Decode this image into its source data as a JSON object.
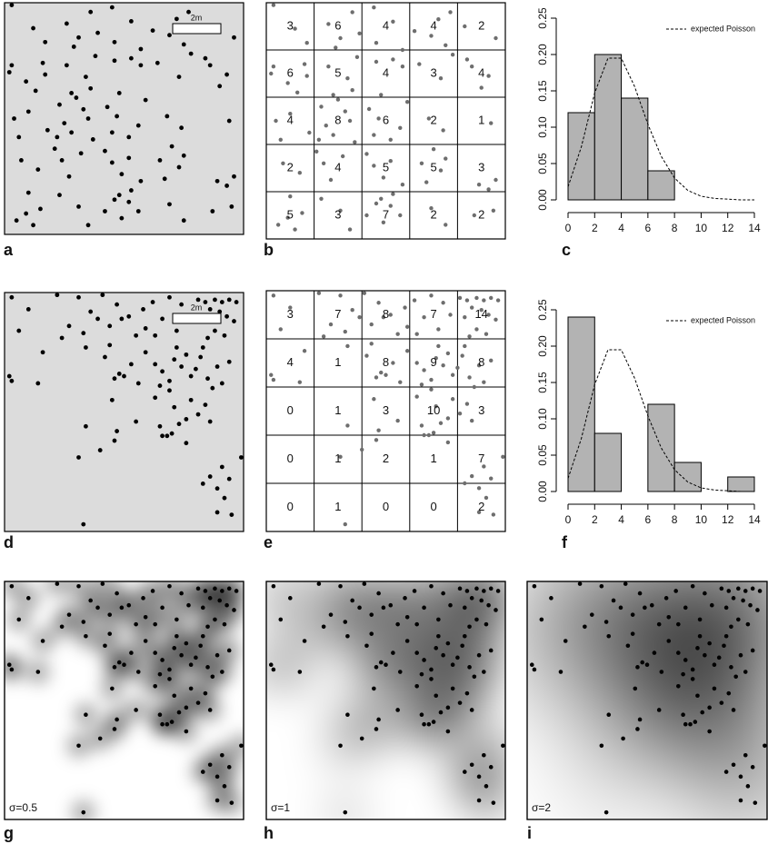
{
  "panel_labels": [
    "a",
    "b",
    "c",
    "d",
    "e",
    "f",
    "g",
    "h",
    "i"
  ],
  "scale_bar": "2m",
  "density_labels": [
    "σ=0.5",
    "σ=1",
    "σ=2"
  ],
  "chart_data": [
    {
      "type": "scatter",
      "xlim": [
        0,
        10
      ],
      "ylim": [
        0,
        10
      ],
      "points": [
        [
          0.3,
          9.9
        ],
        [
          1.2,
          8.9
        ],
        [
          1.7,
          8.3
        ],
        [
          2.6,
          9.1
        ],
        [
          3.6,
          9.6
        ],
        [
          4.5,
          9.8
        ],
        [
          3.1,
          8.5
        ],
        [
          2.9,
          8.1
        ],
        [
          3.9,
          8.7
        ],
        [
          4.6,
          8.3
        ],
        [
          5.3,
          9.2
        ],
        [
          5.7,
          8.0
        ],
        [
          6.2,
          8.8
        ],
        [
          7.2,
          9.3
        ],
        [
          7.7,
          9.6
        ],
        [
          6.9,
          8.6
        ],
        [
          7.5,
          8.2
        ],
        [
          8.3,
          9.0
        ],
        [
          9.6,
          8.5
        ],
        [
          0.3,
          7.3
        ],
        [
          0.2,
          7.0
        ],
        [
          1.6,
          7.4
        ],
        [
          1.7,
          6.9
        ],
        [
          1.3,
          6.2
        ],
        [
          0.9,
          6.6
        ],
        [
          2.6,
          7.3
        ],
        [
          3.4,
          6.8
        ],
        [
          3.6,
          6.3
        ],
        [
          2.8,
          6.1
        ],
        [
          3.8,
          7.7
        ],
        [
          4.6,
          7.5
        ],
        [
          5.3,
          7.6
        ],
        [
          5.7,
          7.3
        ],
        [
          4.8,
          6.1
        ],
        [
          6.4,
          7.4
        ],
        [
          7.3,
          6.8
        ],
        [
          7.8,
          7.8
        ],
        [
          8.4,
          7.6
        ],
        [
          8.6,
          7.3
        ],
        [
          9.0,
          6.4
        ],
        [
          9.3,
          6.9
        ],
        [
          0.4,
          5.0
        ],
        [
          1.0,
          5.3
        ],
        [
          1.8,
          4.5
        ],
        [
          0.6,
          4.2
        ],
        [
          2.3,
          5.6
        ],
        [
          2.5,
          4.8
        ],
        [
          2.8,
          4.4
        ],
        [
          3.0,
          5.9
        ],
        [
          3.5,
          5.0
        ],
        [
          3.7,
          4.1
        ],
        [
          2.2,
          4.2
        ],
        [
          3.3,
          5.4
        ],
        [
          4.3,
          5.5
        ],
        [
          4.7,
          5.1
        ],
        [
          5.2,
          4.2
        ],
        [
          5.6,
          4.7
        ],
        [
          5.9,
          5.8
        ],
        [
          4.5,
          4.4
        ],
        [
          6.8,
          5.1
        ],
        [
          7.4,
          4.6
        ],
        [
          9.4,
          4.9
        ],
        [
          0.7,
          3.2
        ],
        [
          1.4,
          2.8
        ],
        [
          2.1,
          3.7
        ],
        [
          2.4,
          3.2
        ],
        [
          3.2,
          3.5
        ],
        [
          2.7,
          2.5
        ],
        [
          4.2,
          3.6
        ],
        [
          4.5,
          3.1
        ],
        [
          4.9,
          2.6
        ],
        [
          5.2,
          3.3
        ],
        [
          5.7,
          2.3
        ],
        [
          6.5,
          3.2
        ],
        [
          7.0,
          3.8
        ],
        [
          7.3,
          2.9
        ],
        [
          7.5,
          3.4
        ],
        [
          6.7,
          2.4
        ],
        [
          8.9,
          2.3
        ],
        [
          9.3,
          2.1
        ],
        [
          9.6,
          2.5
        ],
        [
          0.5,
          0.6
        ],
        [
          1.0,
          1.8
        ],
        [
          1.2,
          0.4
        ],
        [
          0.9,
          0.9
        ],
        [
          1.5,
          1.1
        ],
        [
          2.3,
          1.7
        ],
        [
          3.1,
          1.2
        ],
        [
          3.5,
          0.4
        ],
        [
          4.2,
          1.0
        ],
        [
          4.6,
          1.5
        ],
        [
          4.8,
          1.7
        ],
        [
          5.2,
          1.4
        ],
        [
          4.9,
          0.7
        ],
        [
          5.6,
          1.0
        ],
        [
          5.3,
          1.9
        ],
        [
          6.9,
          1.3
        ],
        [
          7.5,
          0.6
        ],
        [
          8.7,
          1.0
        ],
        [
          9.5,
          1.2
        ]
      ],
      "quadrat_counts": [
        [
          3,
          6,
          4,
          4,
          2
        ],
        [
          6,
          5,
          4,
          3,
          4
        ],
        [
          4,
          8,
          6,
          2,
          1
        ],
        [
          2,
          4,
          5,
          5,
          3
        ],
        [
          5,
          3,
          7,
          2,
          2
        ]
      ]
    },
    {
      "type": "scatter",
      "xlim": [
        0,
        10
      ],
      "ylim": [
        0,
        10
      ],
      "points": [
        [
          0.3,
          9.8
        ],
        [
          1.0,
          9.3
        ],
        [
          0.6,
          8.4
        ],
        [
          2.2,
          9.9
        ],
        [
          3.1,
          9.8
        ],
        [
          3.6,
          9.2
        ],
        [
          2.7,
          8.6
        ],
        [
          3.3,
          8.3
        ],
        [
          3.9,
          8.9
        ],
        [
          2.4,
          8.1
        ],
        [
          4.1,
          9.9
        ],
        [
          4.7,
          9.5
        ],
        [
          5.2,
          9.0
        ],
        [
          5.8,
          9.3
        ],
        [
          4.4,
          8.6
        ],
        [
          5.5,
          8.2
        ],
        [
          4.9,
          8.9
        ],
        [
          5.9,
          8.5
        ],
        [
          6.2,
          9.6
        ],
        [
          6.9,
          9.8
        ],
        [
          7.4,
          9.5
        ],
        [
          6.6,
          8.9
        ],
        [
          7.2,
          8.4
        ],
        [
          7.7,
          9.0
        ],
        [
          6.3,
          8.2
        ],
        [
          8.1,
          9.7
        ],
        [
          8.4,
          9.6
        ],
        [
          8.8,
          9.7
        ],
        [
          9.1,
          9.6
        ],
        [
          9.4,
          9.7
        ],
        [
          9.7,
          9.6
        ],
        [
          8.6,
          9.3
        ],
        [
          9.0,
          9.2
        ],
        [
          9.3,
          9.0
        ],
        [
          8.3,
          8.9
        ],
        [
          9.6,
          8.8
        ],
        [
          8.8,
          8.4
        ],
        [
          9.2,
          8.2
        ],
        [
          8.5,
          8.1
        ],
        [
          0.2,
          6.5
        ],
        [
          0.3,
          6.3
        ],
        [
          1.4,
          6.2
        ],
        [
          1.6,
          7.5
        ],
        [
          3.4,
          7.7
        ],
        [
          4.2,
          7.3
        ],
        [
          4.6,
          6.4
        ],
        [
          4.8,
          6.6
        ],
        [
          5.0,
          6.5
        ],
        [
          5.3,
          7.0
        ],
        [
          5.6,
          6.2
        ],
        [
          4.4,
          7.8
        ],
        [
          5.9,
          7.5
        ],
        [
          6.3,
          7.0
        ],
        [
          6.6,
          6.7
        ],
        [
          6.9,
          6.3
        ],
        [
          7.2,
          7.7
        ],
        [
          7.4,
          6.9
        ],
        [
          7.8,
          6.5
        ],
        [
          6.5,
          6.1
        ],
        [
          7.1,
          7.2
        ],
        [
          7.6,
          7.4
        ],
        [
          8.0,
          6.8
        ],
        [
          8.2,
          7.3
        ],
        [
          8.5,
          6.4
        ],
        [
          8.9,
          6.9
        ],
        [
          9.1,
          6.2
        ],
        [
          8.3,
          7.7
        ],
        [
          9.4,
          7.1
        ],
        [
          8.7,
          6.0
        ],
        [
          3.4,
          4.4
        ],
        [
          4.5,
          5.5
        ],
        [
          5.5,
          4.6
        ],
        [
          4.7,
          4.2
        ],
        [
          6.3,
          5.6
        ],
        [
          6.5,
          4.4
        ],
        [
          6.6,
          4.0
        ],
        [
          6.8,
          4.0
        ],
        [
          7.0,
          4.1
        ],
        [
          7.1,
          5.2
        ],
        [
          7.3,
          4.5
        ],
        [
          7.6,
          4.7
        ],
        [
          6.9,
          5.9
        ],
        [
          7.8,
          5.5
        ],
        [
          8.4,
          5.3
        ],
        [
          8.6,
          4.6
        ],
        [
          8.1,
          4.9
        ],
        [
          3.1,
          3.1
        ],
        [
          4.0,
          3.4
        ],
        [
          4.6,
          3.8
        ],
        [
          7.6,
          3.7
        ],
        [
          9.9,
          3.1
        ],
        [
          9.1,
          2.7
        ],
        [
          8.3,
          2.0
        ],
        [
          8.6,
          2.3
        ],
        [
          8.9,
          1.8
        ],
        [
          9.4,
          2.2
        ],
        [
          9.2,
          1.4
        ],
        [
          3.3,
          0.3
        ],
        [
          8.9,
          0.8
        ],
        [
          9.5,
          0.7
        ]
      ],
      "quadrat_counts": [
        [
          3,
          7,
          8,
          7,
          14
        ],
        [
          4,
          1,
          8,
          9,
          8
        ],
        [
          0,
          1,
          3,
          10,
          3
        ],
        [
          0,
          1,
          2,
          1,
          7
        ],
        [
          0,
          1,
          0,
          0,
          2
        ]
      ]
    },
    {
      "type": "histogram",
      "bins": [
        0,
        2,
        4,
        6,
        8,
        10,
        12,
        14
      ],
      "values": [
        0.12,
        0.2,
        0.14,
        0.04,
        0,
        0,
        0
      ],
      "color": "#b3b3b3",
      "xlim": [
        0,
        14
      ],
      "xticks": [
        0,
        2,
        4,
        6,
        8,
        10,
        12,
        14
      ],
      "ylim": [
        0,
        0.25
      ],
      "yticks": [
        {
          "value": 0,
          "label": "0.00"
        },
        {
          "value": 0.05,
          "label": "0.05"
        },
        {
          "value": 0.1,
          "label": "0.10"
        },
        {
          "value": 0.15,
          "label": "0.15"
        },
        {
          "value": 0.2,
          "label": "0.20"
        },
        {
          "value": 0.25,
          "label": "0.25"
        }
      ],
      "series": [
        {
          "name": "expected Poisson",
          "x": [
            0,
            1,
            2,
            3,
            4,
            5,
            6,
            7,
            8,
            9,
            10,
            11,
            12,
            13,
            14
          ],
          "values": [
            0.018,
            0.073,
            0.147,
            0.195,
            0.195,
            0.156,
            0.104,
            0.06,
            0.03,
            0.013,
            0.005,
            0.002,
            0.001,
            0,
            0
          ]
        }
      ]
    },
    {
      "type": "histogram",
      "bins": [
        0,
        2,
        4,
        6,
        8,
        10,
        12,
        14
      ],
      "values": [
        0.24,
        0.08,
        0,
        0.12,
        0.04,
        0,
        0.02
      ],
      "color": "#b3b3b3",
      "xlim": [
        0,
        14
      ],
      "xticks": [
        0,
        2,
        4,
        6,
        8,
        10,
        12,
        14
      ],
      "ylim": [
        0,
        0.25
      ],
      "yticks": [
        {
          "value": 0,
          "label": "0.00"
        },
        {
          "value": 0.05,
          "label": "0.05"
        },
        {
          "value": 0.1,
          "label": "0.10"
        },
        {
          "value": 0.15,
          "label": "0.15"
        },
        {
          "value": 0.2,
          "label": "0.20"
        },
        {
          "value": 0.25,
          "label": "0.25"
        }
      ],
      "series": [
        {
          "name": "expected Poisson",
          "x": [
            0,
            1,
            2,
            3,
            4,
            5,
            6,
            7,
            8,
            9,
            10,
            11,
            12,
            13,
            14
          ],
          "values": [
            0.018,
            0.073,
            0.147,
            0.195,
            0.195,
            0.156,
            0.104,
            0.06,
            0.03,
            0.013,
            0.005,
            0.002,
            0.001,
            0,
            0
          ]
        }
      ]
    }
  ]
}
